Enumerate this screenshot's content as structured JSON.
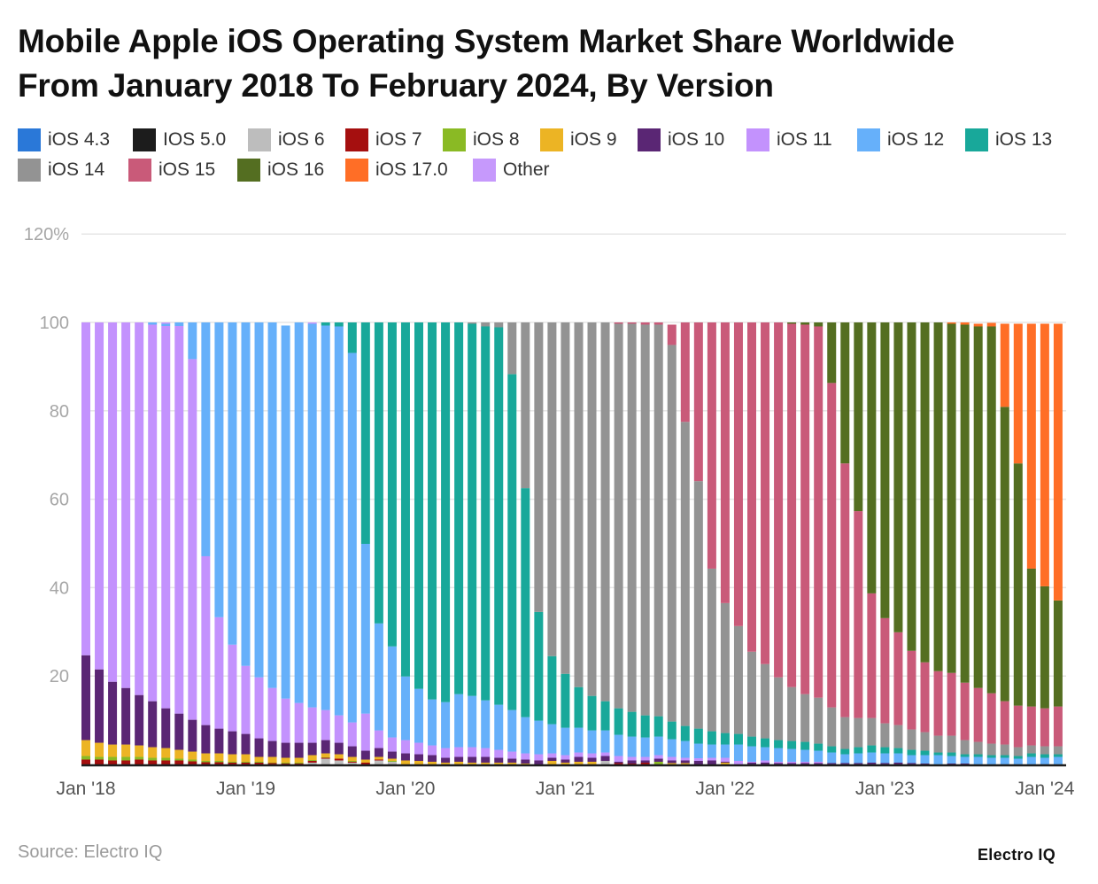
{
  "title_line1": "Mobile Apple iOS Operating System Market Share Worldwide",
  "title_line2": "From January 2018 To February 2024, By Version",
  "source": "Source: Electro IQ",
  "logo": "Electro IQ",
  "chart_data": {
    "type": "bar",
    "stacked": true,
    "title": "Mobile Apple iOS Operating System Market Share Worldwide From January 2018 To February 2024, By Version",
    "ylim": [
      0,
      120
    ],
    "y_ticks": [
      "20",
      "40",
      "60",
      "80",
      "100",
      "120%"
    ],
    "y_tick_values": [
      20,
      40,
      60,
      80,
      100,
      120
    ],
    "x_ticks": [
      "Jan '18",
      "Jan '19",
      "Jan '20",
      "Jan '21",
      "Jan '22",
      "Jan '23",
      "Jan '24"
    ],
    "x_tick_categories": [
      "Jan 2018",
      "Jan 2019",
      "Jan 2020",
      "Jan 2021",
      "Jan 2022",
      "Jan 2023",
      "Jan 2024"
    ],
    "grid": true,
    "legend_placement": "top-left",
    "categories": [
      "Jan 2018",
      "Feb 2018",
      "Mar 2018",
      "Apr 2018",
      "May 2018",
      "Jun 2018",
      "Jul 2018",
      "Aug 2018",
      "Sep 2018",
      "Oct 2018",
      "Nov 2018",
      "Dec 2018",
      "Jan 2019",
      "Feb 2019",
      "Mar 2019",
      "Apr 2019",
      "May 2019",
      "Jun 2019",
      "Jul 2019",
      "Aug 2019",
      "Sep 2019",
      "Oct 2019",
      "Nov 2019",
      "Dec 2019",
      "Jan 2020",
      "Feb 2020",
      "Mar 2020",
      "Apr 2020",
      "May 2020",
      "Jun 2020",
      "Jul 2020",
      "Aug 2020",
      "Sep 2020",
      "Oct 2020",
      "Nov 2020",
      "Dec 2020",
      "Jan 2021",
      "Feb 2021",
      "Mar 2021",
      "Apr 2021",
      "May 2021",
      "Jun 2021",
      "Jul 2021",
      "Aug 2021",
      "Sep 2021",
      "Oct 2021",
      "Nov 2021",
      "Dec 2021",
      "Jan 2022",
      "Feb 2022",
      "Mar 2022",
      "Apr 2022",
      "May 2022",
      "Jun 2022",
      "Jul 2022",
      "Aug 2022",
      "Sep 2022",
      "Oct 2022",
      "Nov 2022",
      "Dec 2022",
      "Jan 2023",
      "Feb 2023",
      "Mar 2023",
      "Apr 2023",
      "May 2023",
      "Jun 2023",
      "Jul 2023",
      "Aug 2023",
      "Sep 2023",
      "Oct 2023",
      "Nov 2023",
      "Dec 2023",
      "Jan 2024",
      "Feb 2024"
    ],
    "series": [
      {
        "name": "iOS 4.3",
        "color": "#2a78d8",
        "values": [
          0,
          0,
          0,
          0,
          0,
          0,
          0,
          0,
          0,
          0,
          0,
          0,
          0,
          0,
          0,
          0,
          0,
          0,
          0,
          0,
          0,
          0,
          0,
          0,
          0,
          0,
          0,
          0,
          0,
          0,
          0,
          0,
          0,
          0,
          0,
          0,
          0,
          0,
          0,
          0,
          0,
          0,
          0,
          0,
          0,
          0,
          0,
          0,
          0,
          0,
          0,
          0,
          0,
          0,
          0,
          0,
          0,
          0,
          0,
          0,
          0,
          0,
          0,
          0,
          0,
          0,
          0,
          0,
          0,
          0,
          0,
          0,
          0,
          0
        ]
      },
      {
        "name": "IOS 5.0",
        "color": "#1c1c1c",
        "values": [
          0,
          0,
          0,
          0,
          0,
          0,
          0,
          0,
          0,
          0,
          0,
          0,
          0,
          0,
          0,
          0,
          0,
          0,
          0,
          0,
          0,
          0,
          0,
          0,
          0,
          0,
          0,
          0,
          0,
          0,
          0,
          0,
          0,
          0,
          0,
          0,
          0,
          0,
          0,
          0,
          0,
          0,
          0,
          0,
          0,
          0,
          0,
          0,
          0,
          0,
          0,
          0,
          0,
          0,
          0,
          0,
          0,
          0,
          0,
          0,
          0,
          0,
          0,
          0,
          0,
          0,
          0,
          0,
          0,
          0,
          0,
          0,
          0,
          0
        ]
      },
      {
        "name": "iOS 6",
        "color": "#bdbdbd",
        "values": [
          0,
          0,
          0,
          0,
          0,
          0,
          0,
          0,
          0,
          0,
          0,
          0,
          0,
          0,
          0,
          0,
          0,
          0.4,
          1.3,
          0.9,
          0.4,
          0,
          0.9,
          0.6,
          0,
          0,
          0,
          0,
          0,
          0,
          0,
          0,
          0,
          0,
          0,
          0,
          0,
          0,
          0,
          0.8,
          0,
          0,
          0,
          0,
          0,
          0,
          0,
          0,
          0,
          0,
          0,
          0,
          0,
          0,
          0,
          0,
          0,
          0,
          0,
          0,
          0,
          0,
          0,
          0,
          0,
          0,
          0,
          0,
          0,
          0,
          0,
          0,
          0,
          0
        ]
      },
      {
        "name": "iOS 7",
        "color": "#a50f0f",
        "values": [
          1.1,
          1.1,
          0.9,
          0.9,
          1.1,
          0.9,
          0.9,
          0.9,
          0.7,
          0.5,
          0.5,
          0.4,
          0.4,
          0.4,
          0.3,
          0.2,
          0.2,
          0.4,
          0.2,
          0.4,
          0.2,
          0.4,
          0.2,
          0,
          0,
          0,
          0,
          0,
          0,
          0,
          0,
          0,
          0,
          0,
          0,
          0,
          0,
          0,
          0,
          0,
          0.3,
          0.2,
          0.4,
          0,
          0,
          0,
          0,
          0,
          0,
          0,
          0,
          0,
          0,
          0,
          0,
          0,
          0,
          0,
          0,
          0,
          0,
          0,
          0,
          0,
          0,
          0,
          0,
          0,
          0,
          0,
          0,
          0,
          0,
          0
        ]
      },
      {
        "name": "iOS 8",
        "color": "#8aba24",
        "values": [
          0.8,
          0.6,
          0.8,
          0.8,
          0.6,
          0.6,
          0.6,
          0.4,
          0.4,
          0.3,
          0.3,
          0.2,
          0.2,
          0.2,
          0.1,
          0.2,
          0.2,
          0.2,
          0.1,
          0,
          0.2,
          0,
          0,
          0.2,
          0,
          0,
          0,
          0,
          0,
          0,
          0,
          0,
          0,
          0,
          0,
          0,
          0,
          0,
          0,
          0,
          0,
          0,
          0,
          0.6,
          0,
          0,
          0,
          0,
          0,
          0,
          0,
          0,
          0,
          0,
          0,
          0,
          0,
          0,
          0,
          0,
          0,
          0,
          0,
          0,
          0,
          0,
          0,
          0,
          0,
          0,
          0,
          0,
          0,
          0
        ]
      },
      {
        "name": "iOS 9",
        "color": "#ecb424",
        "values": [
          3.6,
          3.2,
          2.8,
          2.8,
          2.6,
          2.4,
          2.2,
          2.0,
          1.8,
          1.7,
          1.7,
          1.7,
          1.7,
          1.1,
          1.3,
          1.1,
          1.1,
          1.1,
          0.9,
          1.0,
          0.9,
          0.7,
          0.6,
          0.5,
          0.9,
          0.8,
          0.6,
          0.4,
          0.6,
          0.4,
          0.4,
          0.4,
          0.4,
          0.2,
          0,
          0.8,
          0.4,
          0.6,
          0.6,
          0,
          0,
          0,
          0,
          0,
          0.3,
          0.3,
          0,
          0,
          0.4,
          0,
          0,
          0,
          0,
          0,
          0,
          0,
          0,
          0,
          0,
          0,
          0,
          0,
          0,
          0,
          0,
          0,
          0,
          0,
          0,
          0,
          0,
          0,
          0,
          0
        ]
      },
      {
        "name": "iOS 10",
        "color": "#5a2674",
        "values": [
          19.2,
          16.6,
          14.2,
          12.8,
          11.4,
          10.4,
          9.0,
          8.2,
          7.2,
          6.4,
          5.6,
          5.2,
          4.6,
          4.2,
          3.6,
          3.4,
          3.4,
          2.8,
          3.0,
          2.6,
          2.4,
          2.0,
          2.0,
          1.6,
          1.6,
          1.5,
          1.5,
          1.1,
          1.1,
          1.3,
          1.3,
          1.1,
          0.9,
          0.9,
          0.9,
          0.7,
          0.7,
          1.1,
          0.9,
          1.1,
          0.3,
          0.7,
          0.5,
          0.7,
          0.6,
          0.6,
          0.8,
          0.9,
          0.2,
          0,
          0.4,
          0.4,
          0.3,
          0.3,
          0.3,
          0.3,
          0.3,
          0.3,
          0.3,
          0.4,
          0.3,
          0.4,
          0.3,
          0.2,
          0,
          0.2,
          0.2,
          0,
          0,
          0,
          0,
          0,
          0,
          0
        ]
      },
      {
        "name": "iOS 11",
        "color": "#c392fd",
        "values": [
          75.3,
          78.5,
          81.3,
          82.7,
          84.3,
          85.2,
          86.5,
          87.7,
          81.6,
          38.2,
          25.2,
          19.6,
          15.4,
          13.8,
          12.0,
          10.0,
          9.0,
          8.0,
          6.8,
          6.2,
          5.4,
          8.4,
          4.0,
          3.2,
          3.0,
          2.6,
          2.2,
          2.2,
          2.2,
          2.2,
          2.0,
          1.8,
          1.6,
          1.4,
          1.4,
          1.0,
          1.0,
          1.0,
          1.0,
          0.8,
          1.3,
          0.8,
          0.8,
          0.8,
          0.8,
          0.6,
          0.6,
          0.6,
          0.9,
          0.8,
          0.2,
          0.5,
          0.3,
          0.3,
          0.3,
          0.3,
          0,
          0,
          0,
          0,
          0,
          0,
          0,
          0,
          0,
          0,
          0,
          0,
          0,
          0,
          0,
          0,
          0,
          0
        ]
      },
      {
        "name": "iOS 12",
        "color": "#66b0fa",
        "values": [
          0,
          0,
          0,
          0,
          0,
          0.5,
          0.5,
          0.8,
          8.3,
          52.9,
          66.7,
          72.9,
          77.7,
          80.3,
          82.7,
          84.4,
          86.1,
          86.8,
          87.0,
          88.0,
          83.6,
          38.4,
          24.2,
          20.6,
          14.4,
          12.2,
          10.4,
          10.4,
          12.0,
          11.6,
          10.8,
          10.2,
          9.4,
          8.2,
          7.6,
          6.6,
          6.2,
          5.6,
          5.2,
          5.0,
          4.8,
          4.6,
          4.4,
          4.2,
          4.0,
          3.8,
          3.3,
          3.0,
          3.0,
          3.7,
          3.5,
          3.0,
          3.1,
          2.9,
          2.7,
          2.5,
          2.4,
          2.0,
          2.2,
          2.3,
          2.2,
          2.1,
          1.8,
          1.9,
          2.1,
          1.7,
          1.5,
          1.7,
          1.5,
          1.5,
          1.3,
          1.7,
          1.5,
          1.7
        ]
      },
      {
        "name": "iOS 13",
        "color": "#18a89a",
        "values": [
          0,
          0,
          0,
          0,
          0,
          0,
          0,
          0,
          0,
          0,
          0,
          0,
          0,
          0,
          0,
          0,
          0,
          0,
          0.7,
          0.9,
          6.9,
          50.1,
          68.1,
          73.3,
          80.1,
          82.9,
          85.3,
          85.9,
          84.1,
          84.2,
          84.6,
          85.4,
          76.0,
          51.8,
          24.6,
          15.4,
          12.2,
          9.2,
          7.8,
          6.6,
          6.0,
          5.6,
          5.0,
          4.6,
          4.0,
          3.4,
          3.4,
          3.0,
          2.6,
          2.4,
          2.2,
          2.0,
          1.8,
          1.8,
          1.8,
          1.6,
          1.4,
          1.2,
          1.4,
          1.6,
          1.4,
          1.2,
          1.2,
          1.0,
          0.6,
          0.8,
          0.6,
          0.6,
          0.6,
          0.6,
          0.6,
          0.8,
          0.8,
          0.6
        ]
      },
      {
        "name": "iOS 14",
        "color": "#939393",
        "values": [
          0,
          0,
          0,
          0,
          0,
          0,
          0,
          0,
          0,
          0,
          0,
          0,
          0,
          0,
          0,
          0,
          0,
          0,
          0,
          0,
          0,
          0,
          0,
          0,
          0,
          0,
          0,
          0,
          0,
          0.3,
          0.9,
          1.1,
          11.7,
          37.5,
          65.5,
          75.5,
          79.5,
          82.5,
          84.5,
          85.7,
          87.0,
          87.8,
          88.4,
          88.6,
          85.2,
          68.8,
          56.0,
          36.8,
          29.4,
          24.4,
          19.2,
          16.8,
          14.2,
          12.2,
          10.8,
          10.4,
          8.8,
          7.2,
          6.6,
          6.2,
          5.4,
          5.2,
          4.6,
          4.2,
          3.8,
          3.8,
          3.2,
          2.8,
          2.6,
          2.4,
          2.0,
          1.8,
          1.8,
          1.8
        ]
      },
      {
        "name": "iOS 15",
        "color": "#c95a79",
        "values": [
          0,
          0,
          0,
          0,
          0,
          0,
          0,
          0,
          0,
          0,
          0,
          0,
          0,
          0,
          0,
          0,
          0,
          0,
          0,
          0,
          0,
          0,
          0,
          0,
          0,
          0,
          0,
          0,
          0,
          0,
          0,
          0,
          0,
          0,
          0,
          0,
          0,
          0,
          0,
          0,
          0.3,
          0.3,
          0.5,
          0.5,
          4.6,
          22.5,
          35.9,
          55.7,
          63.5,
          68.7,
          74.5,
          77.3,
          80.3,
          82.2,
          83.6,
          84.0,
          73.4,
          57.4,
          46.8,
          28.2,
          23.8,
          21.0,
          17.8,
          15.8,
          14.6,
          14.2,
          13.0,
          12.2,
          11.4,
          9.8,
          9.4,
          8.8,
          8.6,
          9.0
        ]
      },
      {
        "name": "iOS 16",
        "color": "#546e21",
        "values": [
          0,
          0,
          0,
          0,
          0,
          0,
          0,
          0,
          0,
          0,
          0,
          0,
          0,
          0,
          0,
          0,
          0,
          0,
          0,
          0,
          0,
          0,
          0,
          0,
          0,
          0,
          0,
          0,
          0,
          0,
          0,
          0,
          0,
          0,
          0,
          0,
          0,
          0,
          0,
          0,
          0,
          0,
          0,
          0,
          0,
          0,
          0,
          0,
          0,
          0,
          0,
          0,
          0,
          0.3,
          0.5,
          0.9,
          13.7,
          31.9,
          42.7,
          61.3,
          66.9,
          70.1,
          74.3,
          76.9,
          78.9,
          79.0,
          81.0,
          81.8,
          83.0,
          66.6,
          54.8,
          31.2,
          27.6,
          24.0
        ]
      },
      {
        "name": "iOS 17.0",
        "color": "#ff6e26",
        "values": [
          0,
          0,
          0,
          0,
          0,
          0,
          0,
          0,
          0,
          0,
          0,
          0,
          0,
          0,
          0,
          0,
          0,
          0,
          0,
          0,
          0,
          0,
          0,
          0,
          0,
          0,
          0,
          0,
          0,
          0,
          0,
          0,
          0,
          0,
          0,
          0,
          0,
          0,
          0,
          0,
          0,
          0,
          0,
          0,
          0,
          0,
          0,
          0,
          0,
          0,
          0,
          0,
          0,
          0,
          0,
          0,
          0,
          0,
          0,
          0,
          0,
          0,
          0,
          0,
          0,
          0.3,
          0.5,
          0.6,
          0.8,
          18.8,
          31.6,
          55.4,
          59.4,
          62.6
        ]
      },
      {
        "name": "Other",
        "color": "#c699fc",
        "values": [
          0,
          0,
          0,
          0,
          0,
          0,
          0.3,
          0,
          0,
          0,
          0,
          0,
          0,
          0,
          0,
          0,
          0,
          0.3,
          0,
          0,
          0,
          0,
          0,
          0,
          0,
          0,
          0,
          0,
          0,
          0,
          0,
          0,
          0,
          0,
          0,
          0,
          0,
          0,
          0,
          0,
          0,
          0,
          0,
          0,
          0,
          0,
          0,
          0,
          0,
          0,
          0,
          0,
          0,
          0,
          0,
          0,
          0,
          0,
          0,
          0,
          0,
          0,
          0,
          0,
          0,
          0,
          0,
          0,
          0,
          0,
          0,
          0,
          0,
          0
        ]
      }
    ]
  }
}
